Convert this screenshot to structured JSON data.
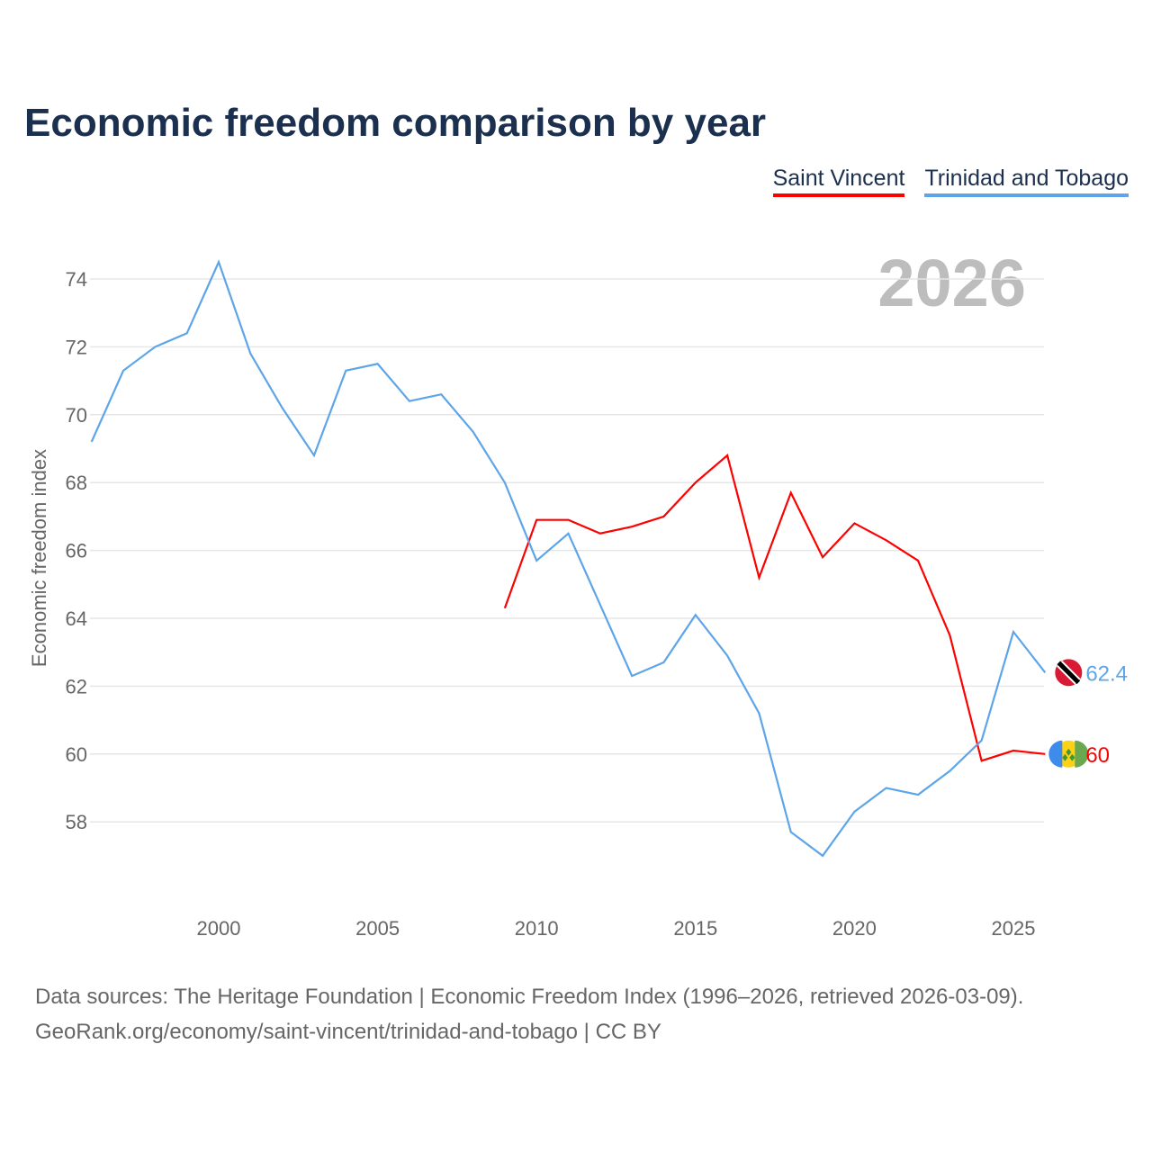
{
  "chart_data": {
    "type": "line",
    "title": "Economic freedom comparison by year",
    "ylabel": "Economic freedom index",
    "xlabel": "",
    "year_watermark": "2026",
    "ylim": [
      56.2,
      75.5
    ],
    "xlim": [
      1996,
      2026
    ],
    "yticks": [
      58,
      60,
      62,
      64,
      66,
      68,
      70,
      72,
      74
    ],
    "xticks": [
      2000,
      2005,
      2010,
      2015,
      2020,
      2025
    ],
    "grid": true,
    "legend_position": "top-right",
    "series": [
      {
        "name": "Saint Vincent",
        "color": "#ff0000",
        "end_label": "60",
        "x": [
          2009,
          2010,
          2011,
          2012,
          2013,
          2014,
          2015,
          2016,
          2017,
          2018,
          2019,
          2020,
          2021,
          2022,
          2023,
          2024,
          2025,
          2026
        ],
        "values": [
          64.3,
          66.9,
          66.9,
          66.5,
          66.7,
          67.0,
          68.0,
          68.8,
          65.2,
          67.7,
          65.8,
          66.8,
          66.3,
          65.7,
          63.5,
          59.8,
          60.1,
          60.0
        ]
      },
      {
        "name": "Trinidad and Tobago",
        "color": "#5da5e8",
        "end_label": "62.4",
        "x": [
          1996,
          1997,
          1998,
          1999,
          2000,
          2001,
          2002,
          2003,
          2004,
          2005,
          2006,
          2007,
          2008,
          2009,
          2010,
          2011,
          2012,
          2013,
          2014,
          2015,
          2016,
          2017,
          2018,
          2019,
          2020,
          2021,
          2022,
          2023,
          2024,
          2025,
          2026
        ],
        "values": [
          69.2,
          71.3,
          72.0,
          72.4,
          74.5,
          71.8,
          70.2,
          68.8,
          71.3,
          71.5,
          70.4,
          70.6,
          69.5,
          68.0,
          65.7,
          66.5,
          64.4,
          62.3,
          62.7,
          64.1,
          62.9,
          61.2,
          57.7,
          57.0,
          58.3,
          59.0,
          58.8,
          59.5,
          60.4,
          63.6,
          62.4
        ]
      }
    ]
  },
  "source_line1": "Data sources: The Heritage Foundation | Economic Freedom Index (1996–2026, retrieved 2026-03-09).",
  "source_line2": "GeoRank.org/economy/saint-vincent/trinidad-and-tobago | CC BY"
}
